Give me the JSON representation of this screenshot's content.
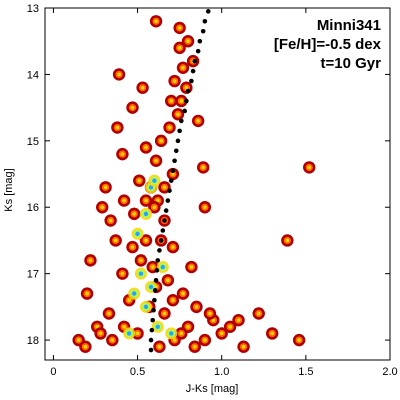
{
  "chart_data": {
    "type": "scatter",
    "title": "",
    "xlabel": "J-Ks [mag]",
    "ylabel": "Ks [mag]",
    "xlim": [
      -0.05,
      2.0
    ],
    "ylim": [
      18.3,
      13.0
    ],
    "y_inverted": true,
    "grid": false,
    "xticks": [
      "0",
      "0.5",
      "1.0",
      "1.5",
      "2.0"
    ],
    "xtick_values": [
      0,
      0.5,
      1.0,
      1.5,
      2.0
    ],
    "yticks": [
      "13",
      "14",
      "15",
      "16",
      "17",
      "18"
    ],
    "ytick_values": [
      13,
      14,
      15,
      16,
      17,
      18
    ],
    "annotation": [
      "Minni341",
      "[Fe/H]=-0.5 dex",
      "t=10 Gyr"
    ],
    "colors": {
      "points_outer": "#b00000",
      "points_mid": "#ff6a00",
      "points_inner": "#ffd400",
      "density_low": "#9dff6a",
      "density_high": "#2aa0ff",
      "isochrone": "#000000"
    },
    "series": [
      {
        "kind": "stars",
        "points": [
          [
            0.61,
            13.2
          ],
          [
            0.75,
            13.3
          ],
          [
            0.8,
            13.5
          ],
          [
            0.83,
            13.8
          ],
          [
            0.75,
            13.6
          ],
          [
            0.77,
            13.9
          ],
          [
            0.72,
            14.1
          ],
          [
            0.76,
            14.4
          ],
          [
            0.79,
            14.2
          ],
          [
            0.7,
            14.4
          ],
          [
            0.74,
            14.6
          ],
          [
            0.69,
            14.8
          ],
          [
            0.64,
            15.0
          ],
          [
            0.61,
            15.3
          ],
          [
            0.71,
            15.5
          ],
          [
            0.66,
            15.7
          ],
          [
            0.39,
            14.0
          ],
          [
            0.53,
            14.2
          ],
          [
            0.47,
            14.5
          ],
          [
            0.38,
            14.8
          ],
          [
            0.55,
            15.1
          ],
          [
            0.41,
            15.2
          ],
          [
            0.31,
            15.7
          ],
          [
            0.42,
            15.9
          ],
          [
            0.86,
            14.7
          ],
          [
            0.89,
            15.4
          ],
          [
            0.9,
            16.0
          ],
          [
            1.52,
            15.4
          ],
          [
            1.39,
            16.5
          ],
          [
            0.82,
            16.9
          ],
          [
            0.22,
            16.8
          ],
          [
            0.2,
            17.3
          ],
          [
            0.15,
            18.0
          ],
          [
            0.33,
            17.6
          ],
          [
            0.26,
            17.8
          ],
          [
            0.41,
            17.0
          ],
          [
            0.45,
            17.4
          ],
          [
            0.55,
            16.5
          ],
          [
            0.48,
            16.1
          ],
          [
            0.62,
            15.9
          ],
          [
            0.58,
            15.7
          ],
          [
            0.66,
            16.2
          ],
          [
            0.71,
            16.6
          ],
          [
            0.68,
            17.1
          ],
          [
            0.77,
            17.3
          ],
          [
            0.85,
            17.5
          ],
          [
            0.95,
            17.7
          ],
          [
            1.05,
            17.8
          ],
          [
            1.22,
            17.6
          ],
          [
            1.3,
            17.9
          ],
          [
            1.46,
            18.0
          ],
          [
            1.13,
            18.1
          ],
          [
            1.0,
            17.9
          ],
          [
            0.9,
            18.0
          ],
          [
            0.8,
            17.8
          ],
          [
            0.72,
            18.0
          ],
          [
            0.63,
            18.1
          ],
          [
            0.5,
            17.9
          ],
          [
            0.42,
            17.8
          ],
          [
            0.35,
            18.0
          ],
          [
            0.28,
            17.9
          ],
          [
            0.57,
            17.5
          ],
          [
            0.61,
            17.2
          ],
          [
            0.52,
            16.8
          ],
          [
            0.47,
            16.6
          ],
          [
            0.37,
            16.5
          ],
          [
            0.34,
            16.2
          ],
          [
            0.29,
            16.0
          ],
          [
            0.51,
            15.6
          ],
          [
            0.55,
            15.9
          ],
          [
            0.6,
            16.0
          ],
          [
            0.64,
            16.5
          ],
          [
            0.59,
            16.9
          ],
          [
            0.66,
            17.6
          ],
          [
            0.71,
            17.4
          ],
          [
            0.76,
            17.9
          ],
          [
            0.84,
            18.1
          ],
          [
            0.93,
            17.6
          ],
          [
            1.1,
            17.7
          ],
          [
            0.19,
            18.1
          ]
        ]
      },
      {
        "kind": "isochrone",
        "points": [
          [
            0.92,
            13.05
          ],
          [
            0.9,
            13.2
          ],
          [
            0.89,
            13.35
          ],
          [
            0.87,
            13.5
          ],
          [
            0.86,
            13.65
          ],
          [
            0.84,
            13.8
          ],
          [
            0.83,
            13.95
          ],
          [
            0.82,
            14.1
          ],
          [
            0.8,
            14.25
          ],
          [
            0.79,
            14.4
          ],
          [
            0.78,
            14.55
          ],
          [
            0.76,
            14.7
          ],
          [
            0.75,
            14.85
          ],
          [
            0.74,
            15.0
          ],
          [
            0.73,
            15.15
          ],
          [
            0.72,
            15.3
          ],
          [
            0.71,
            15.45
          ],
          [
            0.7,
            15.6
          ],
          [
            0.69,
            15.75
          ],
          [
            0.68,
            15.9
          ],
          [
            0.67,
            16.05
          ],
          [
            0.66,
            16.2
          ],
          [
            0.65,
            16.35
          ],
          [
            0.64,
            16.5
          ],
          [
            0.63,
            16.65
          ],
          [
            0.62,
            16.8
          ],
          [
            0.615,
            16.95
          ],
          [
            0.61,
            17.1
          ],
          [
            0.605,
            17.25
          ],
          [
            0.6,
            17.4
          ],
          [
            0.595,
            17.55
          ],
          [
            0.59,
            17.7
          ],
          [
            0.585,
            17.85
          ],
          [
            0.58,
            18.0
          ],
          [
            0.58,
            18.15
          ]
        ]
      },
      {
        "kind": "density",
        "points": [
          [
            0.58,
            15.7
          ],
          [
            0.6,
            15.6
          ],
          [
            0.55,
            16.1
          ],
          [
            0.5,
            16.4
          ],
          [
            0.52,
            17.0
          ],
          [
            0.48,
            17.3
          ],
          [
            0.55,
            17.5
          ],
          [
            0.62,
            17.8
          ],
          [
            0.7,
            17.9
          ],
          [
            0.45,
            17.9
          ],
          [
            0.58,
            17.2
          ],
          [
            0.65,
            16.9
          ]
        ]
      }
    ]
  }
}
